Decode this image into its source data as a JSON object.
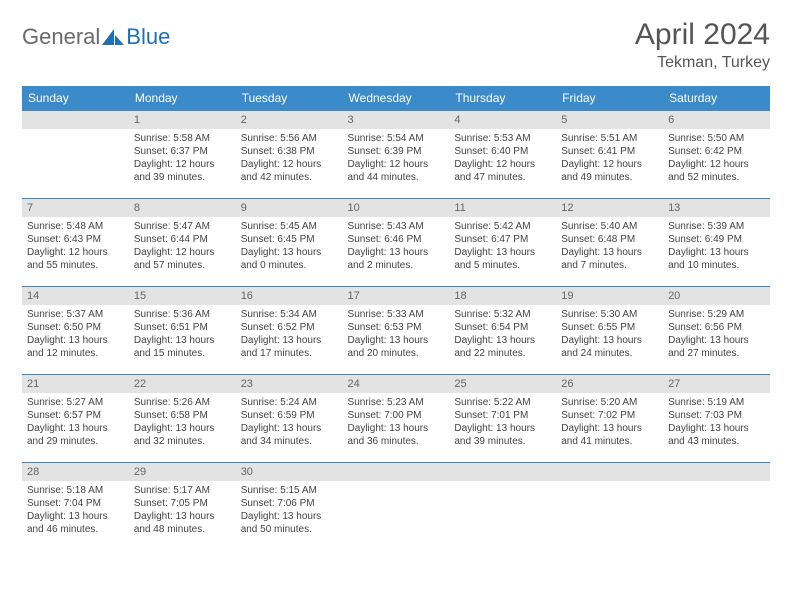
{
  "logo": {
    "text1": "General",
    "text2": "Blue"
  },
  "title": "April 2024",
  "location": "Tekman, Turkey",
  "colors": {
    "header_bg": "#3b8bca",
    "header_text": "#ffffff",
    "daynum_bg": "#e3e3e3",
    "border": "#3b8bca",
    "logo_gray": "#6a6a6a",
    "logo_blue": "#1d6fb8"
  },
  "weekdays": [
    "Sunday",
    "Monday",
    "Tuesday",
    "Wednesday",
    "Thursday",
    "Friday",
    "Saturday"
  ],
  "weeks": [
    [
      {
        "num": "",
        "sunrise": "",
        "sunset": "",
        "daylight1": "",
        "daylight2": ""
      },
      {
        "num": "1",
        "sunrise": "Sunrise: 5:58 AM",
        "sunset": "Sunset: 6:37 PM",
        "daylight1": "Daylight: 12 hours",
        "daylight2": "and 39 minutes."
      },
      {
        "num": "2",
        "sunrise": "Sunrise: 5:56 AM",
        "sunset": "Sunset: 6:38 PM",
        "daylight1": "Daylight: 12 hours",
        "daylight2": "and 42 minutes."
      },
      {
        "num": "3",
        "sunrise": "Sunrise: 5:54 AM",
        "sunset": "Sunset: 6:39 PM",
        "daylight1": "Daylight: 12 hours",
        "daylight2": "and 44 minutes."
      },
      {
        "num": "4",
        "sunrise": "Sunrise: 5:53 AM",
        "sunset": "Sunset: 6:40 PM",
        "daylight1": "Daylight: 12 hours",
        "daylight2": "and 47 minutes."
      },
      {
        "num": "5",
        "sunrise": "Sunrise: 5:51 AM",
        "sunset": "Sunset: 6:41 PM",
        "daylight1": "Daylight: 12 hours",
        "daylight2": "and 49 minutes."
      },
      {
        "num": "6",
        "sunrise": "Sunrise: 5:50 AM",
        "sunset": "Sunset: 6:42 PM",
        "daylight1": "Daylight: 12 hours",
        "daylight2": "and 52 minutes."
      }
    ],
    [
      {
        "num": "7",
        "sunrise": "Sunrise: 5:48 AM",
        "sunset": "Sunset: 6:43 PM",
        "daylight1": "Daylight: 12 hours",
        "daylight2": "and 55 minutes."
      },
      {
        "num": "8",
        "sunrise": "Sunrise: 5:47 AM",
        "sunset": "Sunset: 6:44 PM",
        "daylight1": "Daylight: 12 hours",
        "daylight2": "and 57 minutes."
      },
      {
        "num": "9",
        "sunrise": "Sunrise: 5:45 AM",
        "sunset": "Sunset: 6:45 PM",
        "daylight1": "Daylight: 13 hours",
        "daylight2": "and 0 minutes."
      },
      {
        "num": "10",
        "sunrise": "Sunrise: 5:43 AM",
        "sunset": "Sunset: 6:46 PM",
        "daylight1": "Daylight: 13 hours",
        "daylight2": "and 2 minutes."
      },
      {
        "num": "11",
        "sunrise": "Sunrise: 5:42 AM",
        "sunset": "Sunset: 6:47 PM",
        "daylight1": "Daylight: 13 hours",
        "daylight2": "and 5 minutes."
      },
      {
        "num": "12",
        "sunrise": "Sunrise: 5:40 AM",
        "sunset": "Sunset: 6:48 PM",
        "daylight1": "Daylight: 13 hours",
        "daylight2": "and 7 minutes."
      },
      {
        "num": "13",
        "sunrise": "Sunrise: 5:39 AM",
        "sunset": "Sunset: 6:49 PM",
        "daylight1": "Daylight: 13 hours",
        "daylight2": "and 10 minutes."
      }
    ],
    [
      {
        "num": "14",
        "sunrise": "Sunrise: 5:37 AM",
        "sunset": "Sunset: 6:50 PM",
        "daylight1": "Daylight: 13 hours",
        "daylight2": "and 12 minutes."
      },
      {
        "num": "15",
        "sunrise": "Sunrise: 5:36 AM",
        "sunset": "Sunset: 6:51 PM",
        "daylight1": "Daylight: 13 hours",
        "daylight2": "and 15 minutes."
      },
      {
        "num": "16",
        "sunrise": "Sunrise: 5:34 AM",
        "sunset": "Sunset: 6:52 PM",
        "daylight1": "Daylight: 13 hours",
        "daylight2": "and 17 minutes."
      },
      {
        "num": "17",
        "sunrise": "Sunrise: 5:33 AM",
        "sunset": "Sunset: 6:53 PM",
        "daylight1": "Daylight: 13 hours",
        "daylight2": "and 20 minutes."
      },
      {
        "num": "18",
        "sunrise": "Sunrise: 5:32 AM",
        "sunset": "Sunset: 6:54 PM",
        "daylight1": "Daylight: 13 hours",
        "daylight2": "and 22 minutes."
      },
      {
        "num": "19",
        "sunrise": "Sunrise: 5:30 AM",
        "sunset": "Sunset: 6:55 PM",
        "daylight1": "Daylight: 13 hours",
        "daylight2": "and 24 minutes."
      },
      {
        "num": "20",
        "sunrise": "Sunrise: 5:29 AM",
        "sunset": "Sunset: 6:56 PM",
        "daylight1": "Daylight: 13 hours",
        "daylight2": "and 27 minutes."
      }
    ],
    [
      {
        "num": "21",
        "sunrise": "Sunrise: 5:27 AM",
        "sunset": "Sunset: 6:57 PM",
        "daylight1": "Daylight: 13 hours",
        "daylight2": "and 29 minutes."
      },
      {
        "num": "22",
        "sunrise": "Sunrise: 5:26 AM",
        "sunset": "Sunset: 6:58 PM",
        "daylight1": "Daylight: 13 hours",
        "daylight2": "and 32 minutes."
      },
      {
        "num": "23",
        "sunrise": "Sunrise: 5:24 AM",
        "sunset": "Sunset: 6:59 PM",
        "daylight1": "Daylight: 13 hours",
        "daylight2": "and 34 minutes."
      },
      {
        "num": "24",
        "sunrise": "Sunrise: 5:23 AM",
        "sunset": "Sunset: 7:00 PM",
        "daylight1": "Daylight: 13 hours",
        "daylight2": "and 36 minutes."
      },
      {
        "num": "25",
        "sunrise": "Sunrise: 5:22 AM",
        "sunset": "Sunset: 7:01 PM",
        "daylight1": "Daylight: 13 hours",
        "daylight2": "and 39 minutes."
      },
      {
        "num": "26",
        "sunrise": "Sunrise: 5:20 AM",
        "sunset": "Sunset: 7:02 PM",
        "daylight1": "Daylight: 13 hours",
        "daylight2": "and 41 minutes."
      },
      {
        "num": "27",
        "sunrise": "Sunrise: 5:19 AM",
        "sunset": "Sunset: 7:03 PM",
        "daylight1": "Daylight: 13 hours",
        "daylight2": "and 43 minutes."
      }
    ],
    [
      {
        "num": "28",
        "sunrise": "Sunrise: 5:18 AM",
        "sunset": "Sunset: 7:04 PM",
        "daylight1": "Daylight: 13 hours",
        "daylight2": "and 46 minutes."
      },
      {
        "num": "29",
        "sunrise": "Sunrise: 5:17 AM",
        "sunset": "Sunset: 7:05 PM",
        "daylight1": "Daylight: 13 hours",
        "daylight2": "and 48 minutes."
      },
      {
        "num": "30",
        "sunrise": "Sunrise: 5:15 AM",
        "sunset": "Sunset: 7:06 PM",
        "daylight1": "Daylight: 13 hours",
        "daylight2": "and 50 minutes."
      },
      {
        "num": "",
        "sunrise": "",
        "sunset": "",
        "daylight1": "",
        "daylight2": ""
      },
      {
        "num": "",
        "sunrise": "",
        "sunset": "",
        "daylight1": "",
        "daylight2": ""
      },
      {
        "num": "",
        "sunrise": "",
        "sunset": "",
        "daylight1": "",
        "daylight2": ""
      },
      {
        "num": "",
        "sunrise": "",
        "sunset": "",
        "daylight1": "",
        "daylight2": ""
      }
    ]
  ]
}
